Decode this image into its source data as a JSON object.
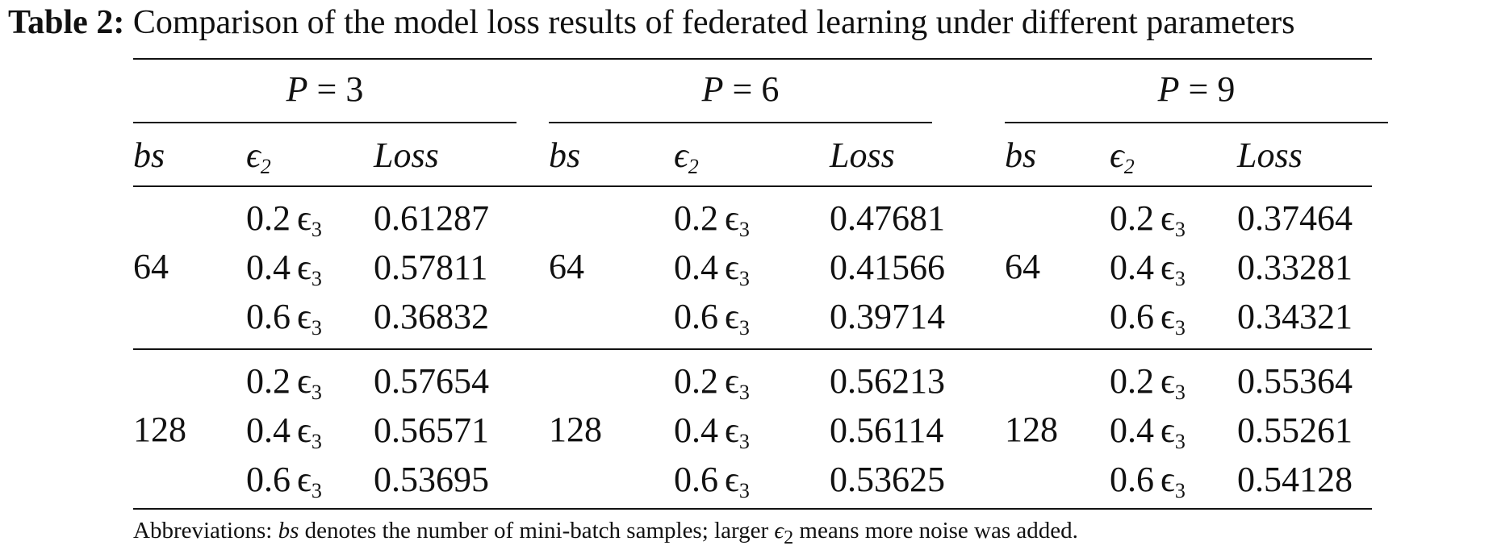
{
  "caption": {
    "label": "Table 2:",
    "text": "Comparison of the model loss results of federated learning under different parameters"
  },
  "groups": [
    {
      "header": "P = 3",
      "p_var": "P",
      "p_eq": "= 3"
    },
    {
      "header": "P = 6",
      "p_var": "P",
      "p_eq": "= 6"
    },
    {
      "header": "P = 9",
      "p_var": "P",
      "p_eq": "= 9"
    }
  ],
  "columns": {
    "bs": "bs",
    "eps_base": "ϵ",
    "eps_sub": "2",
    "loss": "Loss"
  },
  "row_blocks": [
    {
      "bs": "64",
      "eps": [
        "0.2",
        "0.4",
        "0.6"
      ],
      "eps_symbol": "ϵ",
      "eps_sub": "3",
      "loss": [
        [
          "0.61287",
          "0.57811",
          "0.36832"
        ],
        [
          "0.47681",
          "0.41566",
          "0.39714"
        ],
        [
          "0.37464",
          "0.33281",
          "0.34321"
        ]
      ]
    },
    {
      "bs": "128",
      "eps": [
        "0.2",
        "0.4",
        "0.6"
      ],
      "eps_symbol": "ϵ",
      "eps_sub": "3",
      "loss": [
        [
          "0.57654",
          "0.56571",
          "0.53695"
        ],
        [
          "0.56213",
          "0.56114",
          "0.53625"
        ],
        [
          "0.55364",
          "0.55261",
          "0.54128"
        ]
      ]
    }
  ],
  "note": {
    "prefix": "Abbreviations: ",
    "bs": "bs",
    "middle": " denotes the number of mini-batch samples; larger ",
    "eps": "ϵ",
    "eps_sub": "2",
    "suffix": " means more noise was added."
  }
}
